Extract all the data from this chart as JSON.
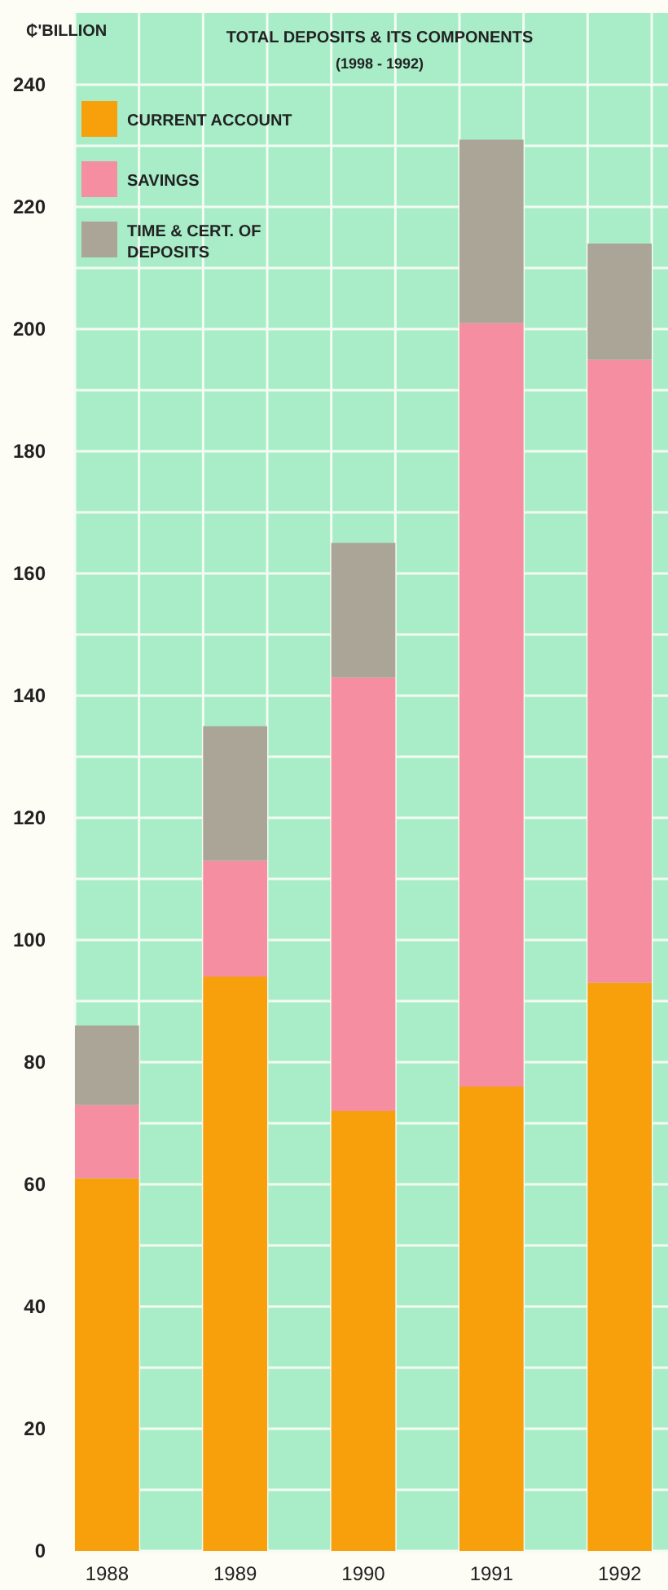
{
  "chart_data": {
    "type": "bar",
    "title": "TOTAL DEPOSITS & ITS COMPONENTS",
    "subtitle": "(1998 - 1992)",
    "ylabel": "₵'BILLION",
    "categories": [
      "1988",
      "1989",
      "1990",
      "1991",
      "1992"
    ],
    "series": [
      {
        "name": "CURRENT ACCOUNT",
        "color": "#f7a00c",
        "values": [
          61,
          94,
          72,
          76,
          93
        ]
      },
      {
        "name": "SAVINGS",
        "color": "#f48ea0",
        "values": [
          12,
          19,
          71,
          125,
          102
        ]
      },
      {
        "name": "TIME & CERT. OF DEPOSITS",
        "color": "#aaa596",
        "values": [
          13,
          22,
          22,
          30,
          19
        ]
      }
    ],
    "stacked": true,
    "ylim": [
      0,
      240
    ],
    "yticks": [
      0,
      {
        "value": 10,
        "label": null
      },
      20,
      {
        "value": 30,
        "label": null
      },
      40,
      {
        "value": 50,
        "label": null
      },
      60,
      {
        "value": 70,
        "label": null
      },
      80,
      {
        "value": 90,
        "label": null
      },
      100,
      {
        "value": 110,
        "label": null
      },
      120,
      {
        "value": 130,
        "label": null
      },
      140,
      {
        "value": 150,
        "label": null
      },
      160,
      {
        "value": 170,
        "label": null
      },
      180,
      {
        "value": 190,
        "label": null
      },
      200,
      {
        "value": 210,
        "label": null
      },
      220,
      {
        "value": 230,
        "label": null
      },
      240
    ],
    "grid": true,
    "legend": "top left"
  }
}
